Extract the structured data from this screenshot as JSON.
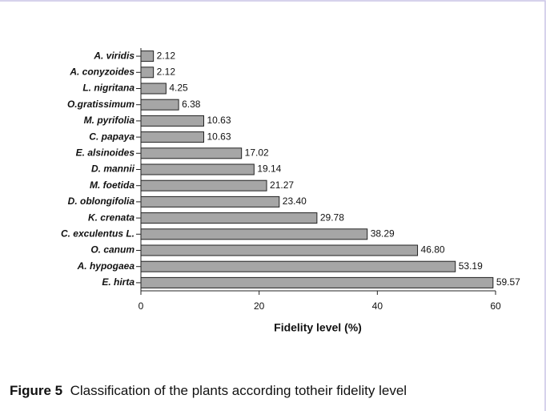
{
  "chart_data": {
    "type": "bar",
    "orientation": "horizontal",
    "categories": [
      "A. viridis",
      "A. conyzoides",
      "L. nigritana",
      "O.gratissimum",
      "M. pyrifolia",
      "C. papaya",
      "E. alsinoides",
      "D. mannii",
      "M. foetida",
      "D. oblongifolia",
      "K. crenata",
      "C. exculentus L.",
      "O. canum",
      "A. hypogaea",
      "E. hirta"
    ],
    "values": [
      2.12,
      2.12,
      4.25,
      6.38,
      10.63,
      10.63,
      17.02,
      19.14,
      21.27,
      23.4,
      29.78,
      38.29,
      46.8,
      53.19,
      59.57
    ],
    "value_labels": [
      "2.12",
      "2.12",
      "4.25",
      "6.38",
      "10.63",
      "10.63",
      "17.02",
      "19.14",
      "21.27",
      "23.40",
      "29.78",
      "38.29",
      "46.80",
      "53.19",
      "59.57"
    ],
    "color": "#a6a6a6",
    "xlim": [
      0,
      60
    ],
    "xticks": [
      0,
      20,
      40,
      60
    ],
    "xlabel": "Fidelity level (%)"
  },
  "caption": {
    "label": "Figure 5",
    "text": "Classification of the plants according totheir fidelity level"
  }
}
